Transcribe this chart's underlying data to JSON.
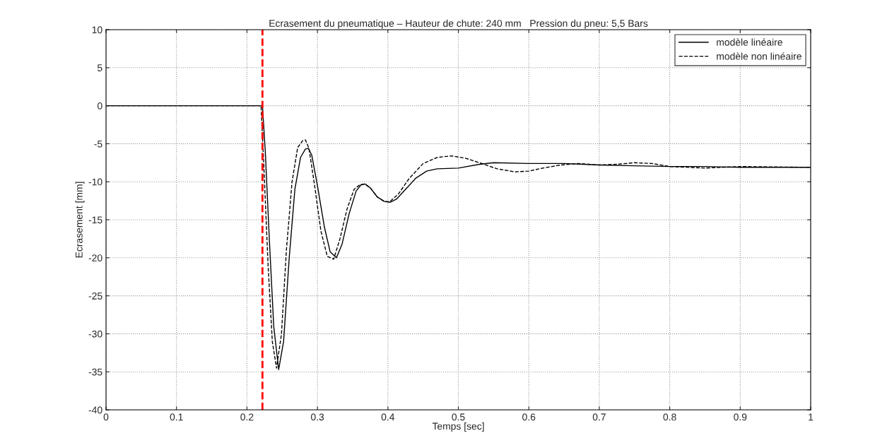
{
  "chart_data": {
    "type": "line",
    "title": "Ecrasement du pneumatique – Hauteur de chute: 240 mm   Pression du pneu: 5,5 Bars",
    "xlabel": "Temps [sec]",
    "ylabel": "Ecrasement [mm]",
    "series": [
      {
        "name": "modèle linéaire",
        "color": "#000000",
        "line_style": "solid",
        "x": [
          0,
          0.222,
          0.226,
          0.232,
          0.238,
          0.245,
          0.252,
          0.26,
          0.268,
          0.276,
          0.283,
          0.287,
          0.292,
          0.3,
          0.31,
          0.318,
          0.327,
          0.335,
          0.345,
          0.355,
          0.362,
          0.368,
          0.375,
          0.385,
          0.395,
          0.403,
          0.412,
          0.425,
          0.44,
          0.455,
          0.47,
          0.5,
          0.53,
          0.55,
          0.6,
          0.65,
          0.7,
          0.75,
          0.8,
          0.85,
          0.9,
          1
        ],
        "values": [
          0,
          0,
          -6,
          -18,
          -29,
          -34.7,
          -31,
          -20,
          -11,
          -6.8,
          -5.7,
          -5.6,
          -6.5,
          -10.5,
          -16,
          -19.2,
          -20,
          -18.2,
          -14.2,
          -11.2,
          -10.4,
          -10.3,
          -10.8,
          -12,
          -12.6,
          -12.7,
          -12.3,
          -11,
          -9.5,
          -8.6,
          -8.3,
          -8.2,
          -7.7,
          -7.5,
          -7.6,
          -7.6,
          -7.8,
          -7.9,
          -8.0,
          -8.0,
          -8.1,
          -8.1
        ]
      },
      {
        "name": "modèle non linéaire",
        "color": "#000000",
        "line_style": "dashed",
        "x": [
          0,
          0.22,
          0.224,
          0.23,
          0.236,
          0.242,
          0.249,
          0.256,
          0.264,
          0.272,
          0.279,
          0.283,
          0.288,
          0.296,
          0.305,
          0.314,
          0.323,
          0.332,
          0.342,
          0.352,
          0.36,
          0.367,
          0.375,
          0.385,
          0.395,
          0.403,
          0.415,
          0.43,
          0.45,
          0.47,
          0.49,
          0.51,
          0.53,
          0.555,
          0.58,
          0.6,
          0.62,
          0.645,
          0.67,
          0.7,
          0.725,
          0.75,
          0.775,
          0.8,
          0.85,
          0.9,
          1
        ],
        "values": [
          0,
          0,
          -8,
          -21,
          -31,
          -34.5,
          -30,
          -19,
          -10,
          -5.5,
          -4.6,
          -4.5,
          -5.6,
          -10.5,
          -16.5,
          -19.8,
          -20.2,
          -17.5,
          -13.6,
          -11,
          -10.4,
          -10.3,
          -10.8,
          -12,
          -12.6,
          -12.6,
          -11.6,
          -9.6,
          -7.6,
          -6.8,
          -6.6,
          -6.9,
          -7.5,
          -8.3,
          -8.7,
          -8.6,
          -8.2,
          -7.8,
          -7.6,
          -7.8,
          -7.7,
          -7.5,
          -7.6,
          -8.0,
          -8.2,
          -8.0,
          -8.1
        ]
      }
    ],
    "xlim": [
      0,
      1
    ],
    "ylim": [
      -40,
      10
    ],
    "xticks": [
      0,
      0.1,
      0.2,
      0.3,
      0.4,
      0.5,
      0.6,
      0.7,
      0.8,
      0.9,
      1
    ],
    "yticks": [
      -40,
      -35,
      -30,
      -25,
      -20,
      -15,
      -10,
      -5,
      0,
      5,
      10
    ],
    "ref_lines": [
      {
        "axis": "x",
        "value": 0.222,
        "color": "#ff0000",
        "line_style": "dashed"
      }
    ],
    "grid": true,
    "legend": "top right"
  }
}
